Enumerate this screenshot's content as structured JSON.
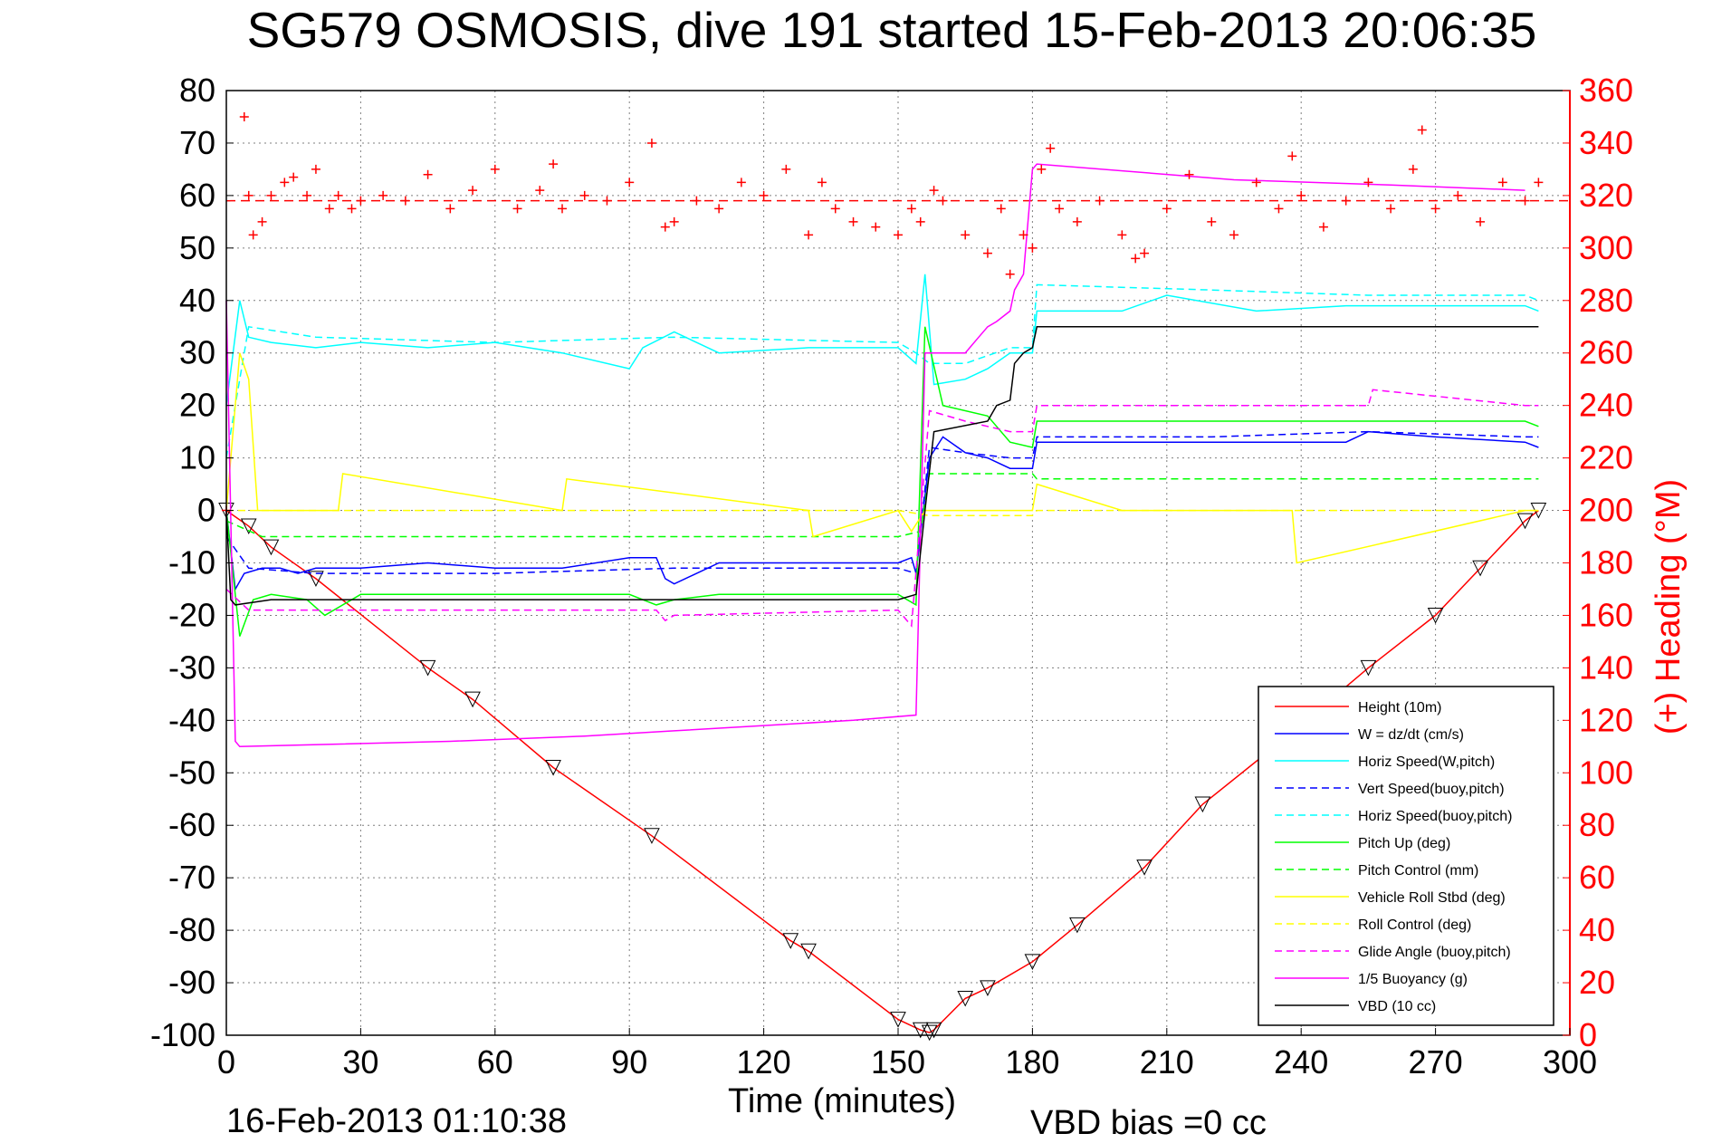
{
  "chart_data": {
    "type": "line",
    "title": "SG579 OSMOSIS, dive 191 started 15-Feb-2013 20:06:35",
    "xlabel": "Time (minutes)",
    "ylabel_right": "(+) Heading (°M)",
    "footer_left": "16-Feb-2013 01:10:38",
    "footer_right": "VBD bias =0 cc",
    "xlim": [
      0,
      300
    ],
    "ylim_left": [
      -100,
      80
    ],
    "ylim_right": [
      0,
      360
    ],
    "grid": true,
    "legend_position": "bottom-right",
    "xticks": [
      0,
      30,
      60,
      90,
      120,
      150,
      180,
      210,
      240,
      270,
      300
    ],
    "yticks_left": [
      80,
      70,
      60,
      50,
      40,
      30,
      20,
      10,
      0,
      -10,
      -20,
      -30,
      -40,
      -50,
      -60,
      -70,
      -80,
      -90,
      -100
    ],
    "yticks_right": [
      360,
      340,
      320,
      300,
      280,
      260,
      240,
      220,
      200,
      180,
      160,
      140,
      120,
      100,
      80,
      60,
      40,
      20,
      0
    ],
    "colors": {
      "red": "#ff0000",
      "blue": "#0000ff",
      "cyan": "#00ffff",
      "green": "#00ff00",
      "yellow": "#ffff00",
      "magenta": "#ff00ff",
      "black": "#000000"
    },
    "heading_reference_deg": 318,
    "series": [
      {
        "name": "Height (10m)",
        "color": "#ff0000",
        "style": "solid",
        "x": [
          0,
          5,
          10,
          20,
          45,
          55,
          73,
          95,
          126,
          130,
          150,
          155,
          157,
          158,
          165,
          170,
          180,
          190,
          205,
          218,
          237,
          255,
          270,
          280,
          290,
          293
        ],
        "y": [
          0,
          -3,
          -7,
          -13,
          -30,
          -36,
          -49,
          -62,
          -82,
          -84,
          -97,
          -99,
          -99.5,
          -99,
          -93,
          -91,
          -86,
          -79,
          -68,
          -56,
          -43,
          -30,
          -20,
          -11,
          -2,
          0
        ]
      },
      {
        "name": "W = dz/dt (cm/s)",
        "color": "#0000ff",
        "style": "solid",
        "x": [
          0,
          2,
          4,
          8,
          12,
          16,
          20,
          30,
          45,
          60,
          75,
          90,
          96,
          98,
          100,
          110,
          130,
          150,
          153,
          154,
          157,
          160,
          165,
          170,
          175,
          180,
          181,
          200,
          220,
          250,
          255,
          270,
          290,
          293
        ],
        "y": [
          0,
          -15,
          -12,
          -11,
          -11,
          -12,
          -11,
          -11,
          -10,
          -11,
          -11,
          -9,
          -9,
          -13,
          -14,
          -10,
          -10,
          -10,
          -9,
          -12,
          10,
          14,
          11,
          10,
          8,
          8,
          13,
          13,
          13,
          13,
          15,
          14,
          13,
          12
        ]
      },
      {
        "name": "Horiz Speed(W,pitch)",
        "color": "#00ffff",
        "style": "solid",
        "x": [
          0,
          3,
          5,
          10,
          20,
          30,
          45,
          60,
          75,
          90,
          93,
          100,
          110,
          130,
          150,
          154,
          156,
          158,
          165,
          170,
          175,
          180,
          181,
          200,
          210,
          230,
          250,
          270,
          290,
          293
        ],
        "y": [
          20,
          40,
          33,
          32,
          31,
          32,
          31,
          32,
          30,
          27,
          31,
          34,
          30,
          31,
          31,
          28,
          45,
          24,
          25,
          27,
          30,
          30,
          38,
          38,
          41,
          38,
          39,
          39,
          39,
          38
        ]
      },
      {
        "name": "Vert Speed(buoy,pitch)",
        "color": "#0000ff",
        "style": "dashed",
        "x": [
          0,
          5,
          20,
          60,
          100,
          150,
          154,
          157,
          165,
          175,
          180,
          181,
          220,
          255,
          290,
          293
        ],
        "y": [
          -5,
          -11,
          -12,
          -12,
          -11,
          -11,
          -12,
          12,
          11,
          10,
          10,
          14,
          14,
          15,
          14,
          14
        ]
      },
      {
        "name": "Horiz Speed(buoy,pitch)",
        "color": "#00ffff",
        "style": "dashed",
        "x": [
          0,
          5,
          20,
          60,
          100,
          150,
          154,
          157,
          165,
          175,
          180,
          181,
          220,
          255,
          290,
          293
        ],
        "y": [
          10,
          35,
          33,
          32,
          33,
          32,
          30,
          28,
          28,
          31,
          31,
          43,
          42,
          41,
          41,
          40
        ]
      },
      {
        "name": "Pitch Up (deg)",
        "color": "#00ff00",
        "style": "solid",
        "x": [
          0,
          3,
          6,
          10,
          18,
          22,
          30,
          60,
          90,
          96,
          100,
          110,
          150,
          154,
          156,
          160,
          170,
          175,
          180,
          181,
          220,
          255,
          290,
          293
        ],
        "y": [
          0,
          -24,
          -17,
          -16,
          -17,
          -20,
          -16,
          -16,
          -16,
          -18,
          -17,
          -16,
          -16,
          -18,
          35,
          20,
          18,
          13,
          12,
          17,
          17,
          17,
          17,
          16
        ]
      },
      {
        "name": "Pitch Control (mm)",
        "color": "#00ff00",
        "style": "dashed",
        "x": [
          0,
          8,
          150,
          155,
          157,
          180,
          181,
          255,
          293
        ],
        "y": [
          -2,
          -5,
          -5,
          -4,
          7,
          7,
          6,
          6,
          6
        ]
      },
      {
        "name": "Vehicle Roll Stbd (deg)",
        "color": "#ffff00",
        "style": "solid",
        "x": [
          0,
          3,
          5,
          7,
          25,
          26,
          75,
          76,
          130,
          131,
          150,
          153,
          156,
          160,
          180,
          181,
          200,
          238,
          239,
          290,
          293
        ],
        "y": [
          0,
          30,
          25,
          0,
          0,
          7,
          0,
          6,
          0,
          -5,
          0,
          -4,
          0,
          0,
          0,
          5,
          0,
          0,
          -10,
          0,
          0
        ]
      },
      {
        "name": "Roll Control (deg)",
        "color": "#ffff00",
        "style": "dashed",
        "x": [
          0,
          10,
          150,
          157,
          180,
          181,
          293
        ],
        "y": [
          0,
          0,
          0,
          -1,
          -1,
          0,
          0
        ]
      },
      {
        "name": "Glide Angle (buoy,pitch)",
        "color": "#ff00ff",
        "style": "dashed",
        "x": [
          0,
          5,
          20,
          60,
          96,
          98,
          100,
          150,
          153,
          157,
          165,
          175,
          180,
          181,
          220,
          255,
          256,
          290,
          293
        ],
        "y": [
          -15,
          -19,
          -19,
          -19,
          -19,
          -21,
          -20,
          -19,
          -22,
          19,
          17,
          15,
          15,
          20,
          20,
          20,
          23,
          20,
          20
        ]
      },
      {
        "name": "1/5 Buoyancy (g)",
        "color": "#ff00ff",
        "style": "solid",
        "x": [
          0,
          2,
          3,
          50,
          80,
          100,
          120,
          140,
          154,
          156,
          165,
          168,
          170,
          172,
          175,
          176,
          178,
          180,
          181,
          225,
          260,
          290
        ],
        "y": [
          40,
          -44,
          -45,
          -44,
          -43,
          -42,
          -41,
          -40,
          -39,
          30,
          30,
          33,
          35,
          36,
          38,
          42,
          45,
          65,
          66,
          63,
          62,
          61
        ]
      },
      {
        "name": "VBD (10 cc)",
        "color": "#000000",
        "style": "solid",
        "x": [
          0,
          1,
          2,
          10,
          150,
          154,
          156,
          158,
          170,
          172,
          175,
          176,
          178,
          180,
          181,
          293
        ],
        "y": [
          0,
          -17,
          -18,
          -17,
          -17,
          -16,
          0,
          15,
          17,
          20,
          21,
          28,
          30,
          31,
          35,
          35
        ]
      },
      {
        "name": "Heading",
        "color": "#ff0000",
        "style": "markers",
        "axis": "right",
        "marker": "+",
        "x": [
          0,
          4,
          5,
          6,
          8,
          10,
          13,
          15,
          18,
          20,
          23,
          25,
          28,
          30,
          35,
          40,
          45,
          50,
          55,
          60,
          65,
          70,
          73,
          75,
          80,
          85,
          90,
          95,
          98,
          100,
          105,
          110,
          115,
          120,
          125,
          130,
          133,
          136,
          140,
          145,
          150,
          153,
          155,
          158,
          160,
          165,
          170,
          173,
          175,
          178,
          180,
          182,
          184,
          186,
          190,
          195,
          200,
          203,
          205,
          210,
          215,
          220,
          225,
          230,
          235,
          238,
          240,
          245,
          250,
          255,
          260,
          265,
          267,
          270,
          275,
          280,
          285,
          290,
          293
        ],
        "y": [
          200,
          350,
          320,
          305,
          310,
          320,
          325,
          327,
          320,
          330,
          315,
          320,
          315,
          318,
          320,
          318,
          328,
          315,
          322,
          330,
          315,
          322,
          332,
          315,
          320,
          318,
          325,
          340,
          308,
          310,
          318,
          315,
          325,
          320,
          330,
          305,
          325,
          315,
          310,
          308,
          305,
          315,
          310,
          322,
          318,
          305,
          298,
          315,
          290,
          305,
          300,
          330,
          338,
          315,
          310,
          318,
          305,
          296,
          298,
          315,
          328,
          310,
          305,
          325,
          315,
          335,
          320,
          308,
          318,
          325,
          315,
          330,
          345,
          315,
          320,
          310,
          325,
          318,
          325
        ]
      }
    ]
  }
}
